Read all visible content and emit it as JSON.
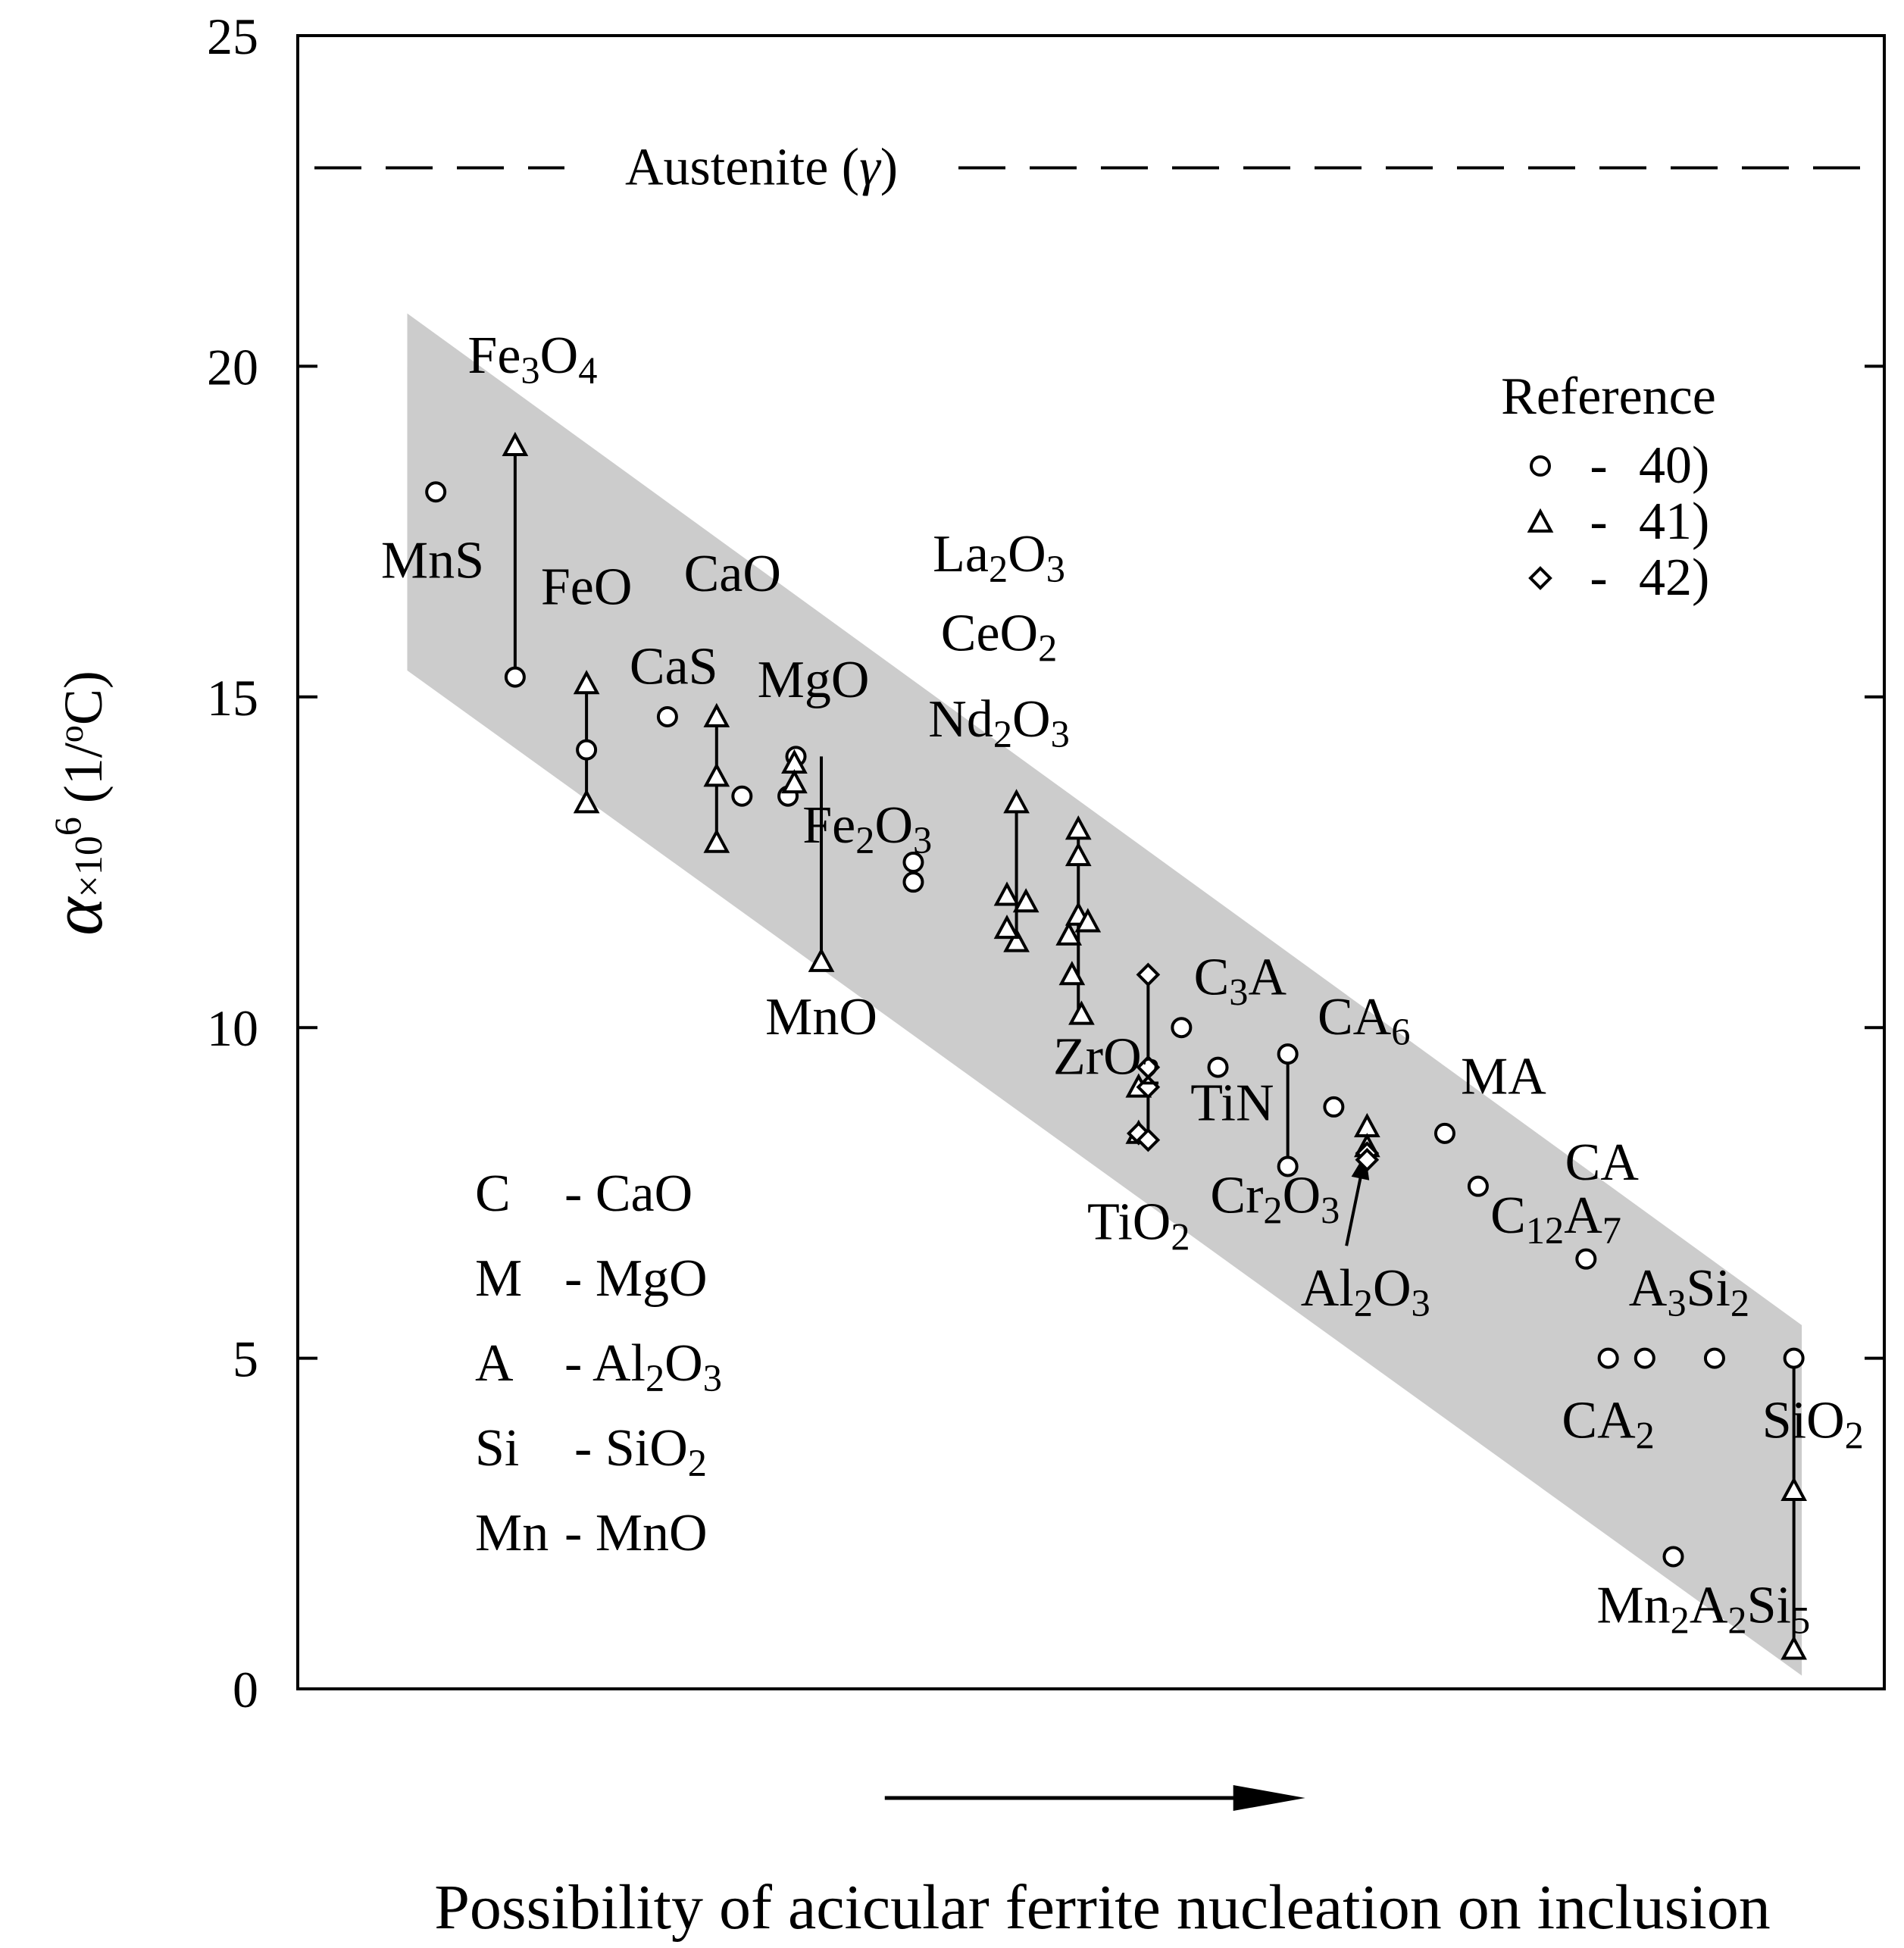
{
  "chart_data": {
    "type": "scatter",
    "title": "",
    "xlabel": "Possibility of acicular ferrite nucleation on inclusion",
    "ylabel": {
      "main": "α",
      "times": "×10",
      "exp": "6",
      "unit_pre": "(1/",
      "unit_sup": "o",
      "unit_post": "C)"
    },
    "ylim": [
      0,
      25
    ],
    "xlim": [
      0,
      100
    ],
    "y_ticks": [
      "0",
      "5",
      "10",
      "15",
      "20",
      "25"
    ],
    "y_tick_values": [
      0,
      5,
      10,
      15,
      20,
      25
    ],
    "grid": false,
    "reference_line": {
      "label_main": "Austenite (",
      "label_sym": "γ",
      "label_end": ")",
      "y": 23.0,
      "style": "dashed"
    },
    "band": {
      "polygon": [
        [
          6.9,
          20.8
        ],
        [
          94.8,
          5.5
        ],
        [
          94.8,
          0.2
        ],
        [
          6.9,
          15.4
        ]
      ],
      "color": "#cccccc"
    },
    "legend": {
      "title": "Reference",
      "position": "top-right",
      "entries": [
        {
          "marker": "circle",
          "dash": "-",
          "label": "40)"
        },
        {
          "marker": "triangle",
          "dash": "-",
          "label": "41)"
        },
        {
          "marker": "diamond",
          "dash": "-",
          "label": "42)"
        }
      ]
    },
    "abbreviations": [
      {
        "key": "C",
        "dash": "-",
        "text": "CaO"
      },
      {
        "key": "M",
        "dash": "-",
        "text": "MgO"
      },
      {
        "key": "A",
        "dash": "-",
        "text": "Al",
        "sub": "2",
        "text2": "O",
        "sub2": "3"
      },
      {
        "key": "Si",
        "dash": "-",
        "text": "SiO",
        "sub": "2"
      },
      {
        "key": "Mn",
        "dash": "-",
        "text": "MnO"
      }
    ],
    "series": [
      {
        "name": "40)",
        "marker": "circle",
        "x": [
          8.7,
          13.7,
          18.2,
          23.3,
          28.0,
          30.9,
          31.4,
          38.8,
          38.8,
          55.7,
          58.0,
          62.4,
          62.4,
          65.3,
          72.3,
          74.4,
          81.2,
          82.6,
          84.9,
          86.7,
          89.3,
          94.3
        ],
        "y": [
          18.1,
          15.3,
          14.2,
          14.7,
          13.5,
          13.5,
          14.1,
          12.5,
          12.2,
          10.0,
          9.4,
          9.6,
          7.9,
          8.8,
          8.4,
          7.6,
          6.5,
          5.0,
          5.0,
          2.0,
          5.0,
          5.0
        ]
      },
      {
        "name": "41)",
        "marker": "triangle",
        "x": [
          13.7,
          18.2,
          18.2,
          26.4,
          26.4,
          26.4,
          31.3,
          31.3,
          33.0,
          45.3,
          45.3,
          44.7,
          44.7,
          45.9,
          49.2,
          49.2,
          49.2,
          49.8,
          48.6,
          48.8,
          49.4,
          53.0,
          53.0,
          67.4,
          67.4,
          94.3,
          94.3
        ],
        "y": [
          18.8,
          15.2,
          13.4,
          14.7,
          13.8,
          12.8,
          14.0,
          13.7,
          11.0,
          13.4,
          11.3,
          12.0,
          11.5,
          11.9,
          13.0,
          12.6,
          11.7,
          11.6,
          11.4,
          10.8,
          10.2,
          9.1,
          8.4,
          8.5,
          8.2,
          3.0,
          0.6
        ]
      },
      {
        "name": "42)",
        "marker": "diamond",
        "x": [
          53.6,
          53.6,
          53.6,
          53.0,
          53.6,
          67.4,
          67.4
        ],
        "y": [
          10.8,
          9.4,
          9.1,
          8.4,
          8.3,
          8.1,
          8.0
        ]
      }
    ],
    "vertical_ranges": [
      {
        "x": 13.7,
        "y1": 15.3,
        "y2": 18.8
      },
      {
        "x": 18.2,
        "y1": 13.4,
        "y2": 15.2
      },
      {
        "x": 26.4,
        "y1": 12.8,
        "y2": 14.7
      },
      {
        "x": 33.0,
        "y1": 11.0,
        "y2": 14.1
      },
      {
        "x": 45.3,
        "y1": 11.3,
        "y2": 13.4
      },
      {
        "x": 49.2,
        "y1": 10.2,
        "y2": 13.0
      },
      {
        "x": 53.6,
        "y1": 8.3,
        "y2": 10.8
      },
      {
        "x": 62.4,
        "y1": 7.9,
        "y2": 9.6
      },
      {
        "x": 94.3,
        "y1": 0.6,
        "y2": 5.0
      }
    ],
    "annotation_arrow": {
      "from": [
        66.1,
        6.7
      ],
      "to": [
        67.3,
        8.1
      ]
    },
    "x_direction_arrow": {
      "from": [
        37.0,
        -1.6
      ],
      "to": [
        63.5,
        -1.6
      ]
    },
    "annotations": [
      {
        "x": 14.8,
        "y": 19.9,
        "parts": [
          [
            "Fe"
          ],
          [
            "3",
            "sub"
          ],
          [
            "O"
          ],
          [
            "4",
            "sub"
          ]
        ]
      },
      {
        "x": 8.5,
        "y": 16.8,
        "parts": [
          [
            "MnS"
          ]
        ]
      },
      {
        "x": 18.2,
        "y": 16.4,
        "parts": [
          [
            "FeO"
          ]
        ]
      },
      {
        "x": 27.4,
        "y": 16.6,
        "parts": [
          [
            "CaO"
          ]
        ]
      },
      {
        "x": 23.7,
        "y": 15.2,
        "parts": [
          [
            "CaS"
          ]
        ]
      },
      {
        "x": 32.5,
        "y": 15.0,
        "parts": [
          [
            "MgO"
          ]
        ]
      },
      {
        "x": 44.2,
        "y": 16.9,
        "parts": [
          [
            "La"
          ],
          [
            "2",
            "sub"
          ],
          [
            "O"
          ],
          [
            "3",
            "sub"
          ]
        ]
      },
      {
        "x": 44.2,
        "y": 15.7,
        "parts": [
          [
            "CeO"
          ],
          [
            "2",
            "sub"
          ]
        ]
      },
      {
        "x": 44.2,
        "y": 14.4,
        "parts": [
          [
            "Nd"
          ],
          [
            "2",
            "sub"
          ],
          [
            "O"
          ],
          [
            "3",
            "sub"
          ]
        ]
      },
      {
        "x": 35.9,
        "y": 12.8,
        "parts": [
          [
            "Fe"
          ],
          [
            "2",
            "sub"
          ],
          [
            "O"
          ],
          [
            "3",
            "sub"
          ]
        ]
      },
      {
        "x": 33.0,
        "y": 9.9,
        "parts": [
          [
            "MnO"
          ]
        ]
      },
      {
        "x": 59.4,
        "y": 10.5,
        "parts": [
          [
            "C"
          ],
          [
            "3",
            "sub"
          ],
          [
            "A"
          ]
        ]
      },
      {
        "x": 67.2,
        "y": 9.9,
        "parts": [
          [
            "CA"
          ],
          [
            "6",
            "sub"
          ]
        ]
      },
      {
        "x": 51.0,
        "y": 9.3,
        "parts": [
          [
            "ZrO"
          ],
          [
            "2",
            "sub"
          ]
        ]
      },
      {
        "x": 58.9,
        "y": 8.6,
        "parts": [
          [
            "TiN"
          ]
        ]
      },
      {
        "x": 76.0,
        "y": 9.0,
        "parts": [
          [
            "MA"
          ]
        ]
      },
      {
        "x": 82.2,
        "y": 7.7,
        "parts": [
          [
            "CA"
          ]
        ]
      },
      {
        "x": 53.0,
        "y": 6.8,
        "parts": [
          [
            "TiO"
          ],
          [
            "2",
            "sub"
          ]
        ]
      },
      {
        "x": 61.6,
        "y": 7.2,
        "parts": [
          [
            "Cr"
          ],
          [
            "2",
            "sub"
          ],
          [
            "O"
          ],
          [
            "3",
            "sub"
          ]
        ]
      },
      {
        "x": 79.3,
        "y": 6.9,
        "parts": [
          [
            "C"
          ],
          [
            "12",
            "sub"
          ],
          [
            "A"
          ],
          [
            "7",
            "sub"
          ]
        ]
      },
      {
        "x": 67.3,
        "y": 5.8,
        "parts": [
          [
            "Al"
          ],
          [
            "2",
            "sub"
          ],
          [
            "O"
          ],
          [
            "3",
            "sub"
          ]
        ]
      },
      {
        "x": 87.7,
        "y": 5.8,
        "parts": [
          [
            "A"
          ],
          [
            "3",
            "sub"
          ],
          [
            "Si"
          ],
          [
            "2",
            "sub"
          ]
        ]
      },
      {
        "x": 82.6,
        "y": 3.8,
        "parts": [
          [
            "CA"
          ],
          [
            "2",
            "sub"
          ]
        ]
      },
      {
        "x": 95.5,
        "y": 3.8,
        "parts": [
          [
            "SiO"
          ],
          [
            "2",
            "sub"
          ]
        ]
      },
      {
        "x": 88.6,
        "y": 1.0,
        "parts": [
          [
            "Mn"
          ],
          [
            "2",
            "sub"
          ],
          [
            "A"
          ],
          [
            "2",
            "sub"
          ],
          [
            "Si"
          ],
          [
            "5",
            "sub"
          ]
        ]
      }
    ]
  }
}
